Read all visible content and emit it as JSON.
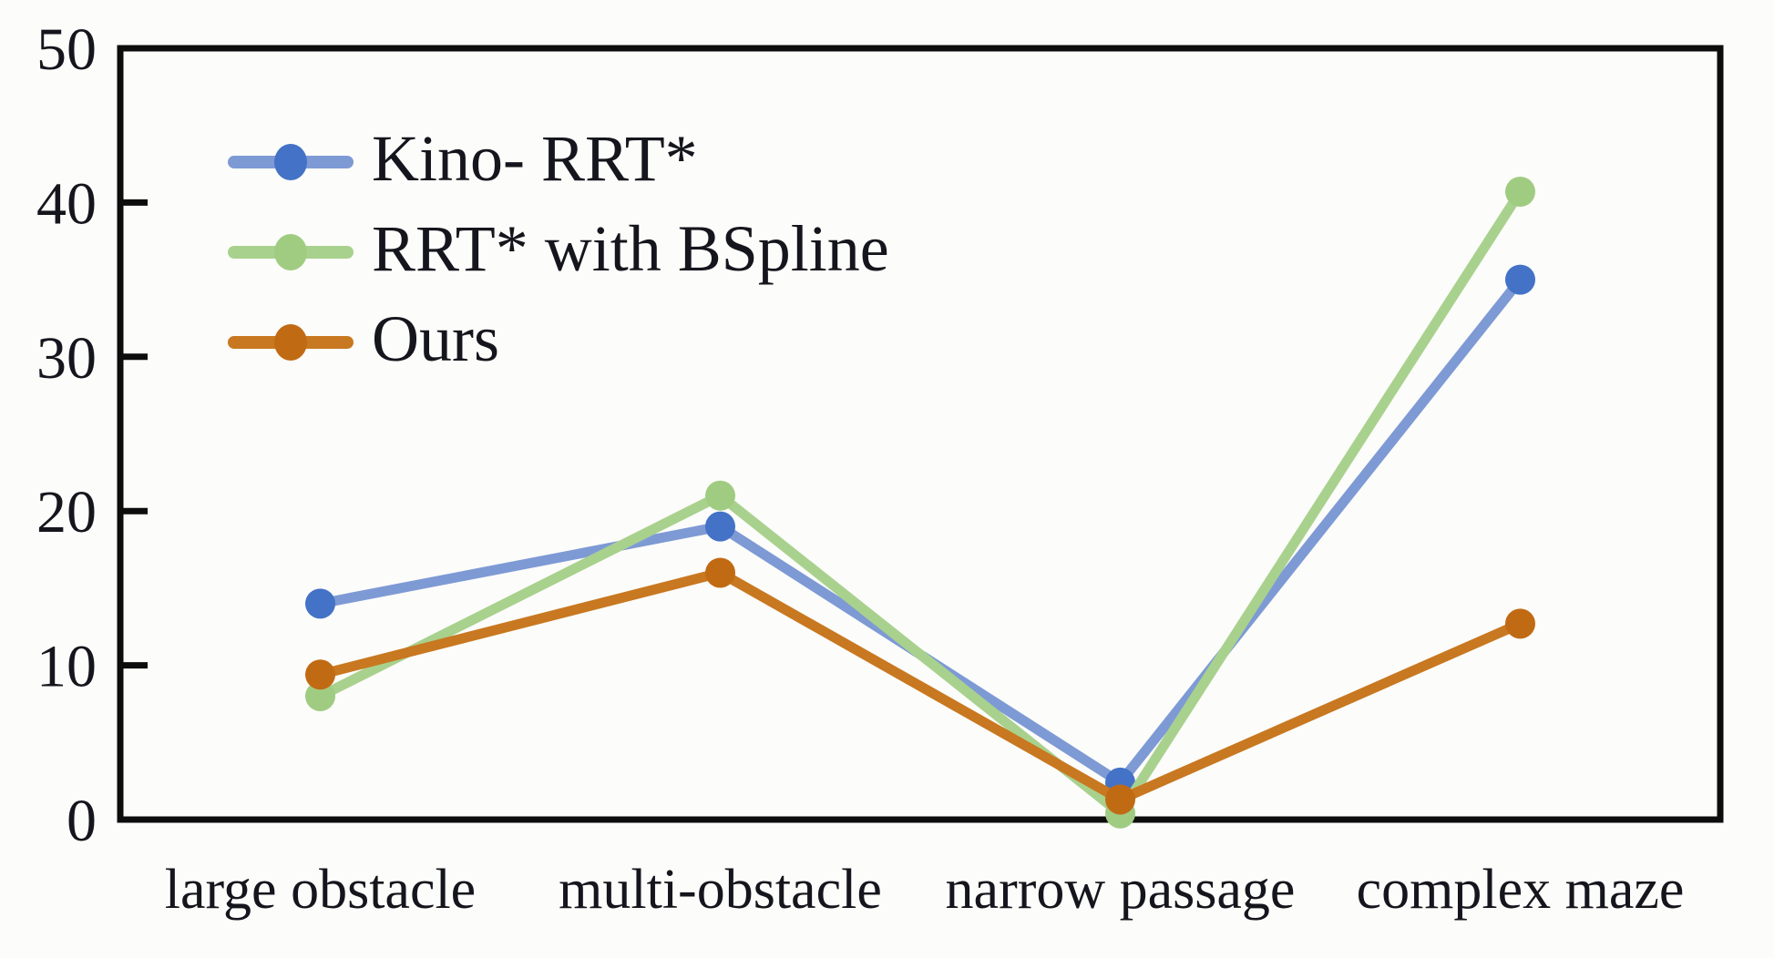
{
  "chart_data": {
    "type": "line",
    "title": "",
    "xlabel": "",
    "ylabel": "",
    "categories": [
      "large obstacle",
      "multi-obstacle",
      "narrow passage",
      "complex maze"
    ],
    "series": [
      {
        "name": "Kino- RRT*",
        "values": [
          14,
          19,
          2.4,
          35
        ],
        "line_color": "#7E9AD5",
        "marker_color": "#4372C6"
      },
      {
        "name": "RRT* with BSpline",
        "values": [
          8,
          21,
          0.4,
          40.7
        ],
        "line_color": "#A9D18E",
        "marker_color": "#A0CC82"
      },
      {
        "name": "Ours",
        "values": [
          9.4,
          16,
          1.3,
          12.7
        ],
        "line_color": "#C87820",
        "marker_color": "#C16A14"
      }
    ],
    "ylim": [
      0,
      50
    ],
    "y_ticks": [
      0,
      10,
      20,
      30,
      40,
      50
    ],
    "grid": false,
    "legend_position": "inside-top-left",
    "axis_color": "#0d0d0d",
    "text_color": "#15151d"
  }
}
